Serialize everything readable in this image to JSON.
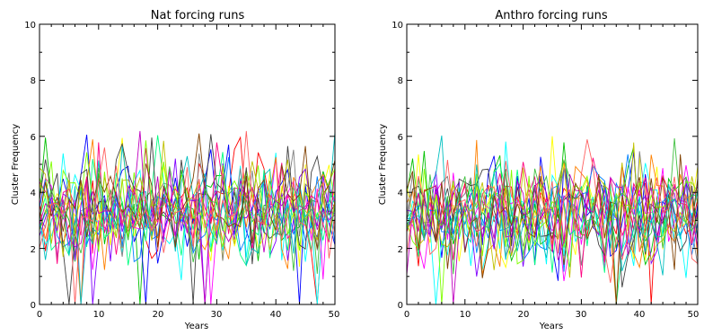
{
  "chart_data": [
    {
      "type": "line",
      "title": "Nat forcing runs",
      "xlabel": "Years",
      "ylabel": "Cluster Frequency",
      "xlim": [
        0,
        50
      ],
      "ylim": [
        0,
        10
      ],
      "xticks": [
        "0",
        "10",
        "20",
        "30",
        "40",
        "50"
      ],
      "yticks": [
        "0",
        "2",
        "4",
        "6",
        "8",
        "10"
      ],
      "grid": false,
      "series_count": 20,
      "series_mean": 3.4,
      "series_range": [
        0,
        6.2
      ],
      "series": [
        {
          "color": "#ff0000"
        },
        {
          "color": "#00c000"
        },
        {
          "color": "#0000ff"
        },
        {
          "color": "#ffff00"
        },
        {
          "color": "#00ffff"
        },
        {
          "color": "#ff00ff"
        },
        {
          "color": "#ff8000"
        },
        {
          "color": "#808080"
        },
        {
          "color": "#8000ff"
        },
        {
          "color": "#00ff80"
        },
        {
          "color": "#ff0080"
        },
        {
          "color": "#0080ff"
        },
        {
          "color": "#80ff00"
        },
        {
          "color": "#404040"
        },
        {
          "color": "#c0c000"
        },
        {
          "color": "#00c0c0"
        },
        {
          "color": "#c000c0"
        },
        {
          "color": "#804000"
        },
        {
          "color": "#40c040"
        },
        {
          "color": "#ff6060"
        }
      ]
    },
    {
      "type": "line",
      "title": "Anthro forcing runs",
      "xlabel": "Years",
      "ylabel": "Cluster Frequency",
      "xlim": [
        0,
        50
      ],
      "ylim": [
        0,
        10
      ],
      "xticks": [
        "0",
        "10",
        "20",
        "30",
        "40",
        "50"
      ],
      "yticks": [
        "0",
        "2",
        "4",
        "6",
        "8",
        "10"
      ],
      "grid": false,
      "series_count": 20,
      "series_mean": 3.2,
      "series_range": [
        0,
        6.1
      ],
      "series": [
        {
          "color": "#ff0000"
        },
        {
          "color": "#00c000"
        },
        {
          "color": "#0000ff"
        },
        {
          "color": "#ffff00"
        },
        {
          "color": "#00ffff"
        },
        {
          "color": "#ff00ff"
        },
        {
          "color": "#ff8000"
        },
        {
          "color": "#808080"
        },
        {
          "color": "#8000ff"
        },
        {
          "color": "#00ff80"
        },
        {
          "color": "#ff0080"
        },
        {
          "color": "#0080ff"
        },
        {
          "color": "#80ff00"
        },
        {
          "color": "#404040"
        },
        {
          "color": "#c0c000"
        },
        {
          "color": "#00c0c0"
        },
        {
          "color": "#c000c0"
        },
        {
          "color": "#804000"
        },
        {
          "color": "#40c040"
        },
        {
          "color": "#ff6060"
        }
      ]
    }
  ]
}
